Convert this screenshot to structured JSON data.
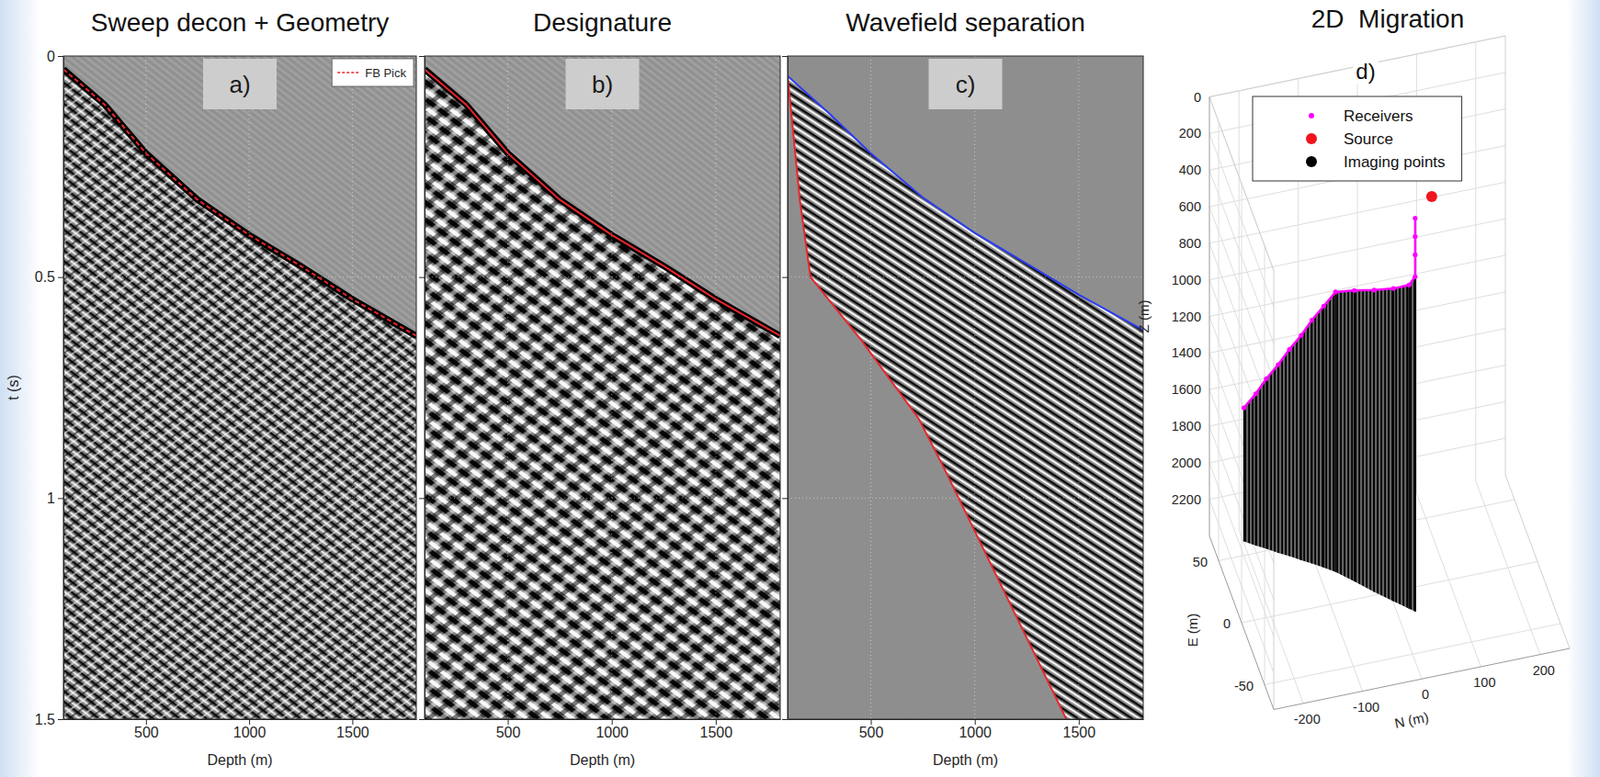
{
  "chart_data": [
    {
      "type": "line",
      "title": "Sweep decon + Geometry",
      "panel_label": "a)",
      "x_label": "Depth (m)",
      "y_label": "t (s)",
      "xlim": [
        100,
        1810
      ],
      "ylim": [
        1.5,
        0
      ],
      "xticks": [
        500,
        1000,
        1500
      ],
      "yticks": [
        0,
        0.5,
        1,
        1.5
      ],
      "grid": true,
      "legend": "upper right",
      "series": [
        {
          "name": "FB Pick",
          "color": "#e8262b",
          "line_style": "dashed",
          "x": [
            100,
            300,
            500,
            750,
            1000,
            1250,
            1500,
            1810
          ],
          "values": [
            0.03,
            0.11,
            0.22,
            0.325,
            0.405,
            0.475,
            0.55,
            0.633
          ]
        }
      ]
    },
    {
      "type": "line",
      "title": "Designature",
      "panel_label": "b)",
      "x_label": "Depth (m)",
      "xlim": [
        100,
        1810
      ],
      "ylim": [
        1.5,
        0
      ],
      "xticks": [
        500,
        1000,
        1500
      ],
      "yticks": [
        0,
        0.5,
        1,
        1.5
      ],
      "grid": true,
      "tick_labels": "x",
      "series": [
        {
          "color": "#e8262b",
          "line_style": "solid",
          "x": [
            100,
            300,
            500,
            750,
            1000,
            1250,
            1500,
            1810
          ],
          "values": [
            0.03,
            0.11,
            0.22,
            0.325,
            0.405,
            0.475,
            0.55,
            0.633
          ]
        }
      ]
    },
    {
      "type": "line",
      "title": "Wavefield separation",
      "panel_label": "c)",
      "x_label": "Depth (m)",
      "xlim": [
        100,
        1810
      ],
      "ylim": [
        1.5,
        0
      ],
      "xticks": [
        500,
        1000,
        1500
      ],
      "yticks": [
        0,
        0.5,
        1,
        1.5
      ],
      "grid": true,
      "tick_labels": "x",
      "series": [
        {
          "color": "#2a3cf0",
          "line_style": "solid",
          "x": [
            100,
            300,
            500,
            750,
            1000,
            1250,
            1500,
            1810
          ],
          "values": [
            0.045,
            0.13,
            0.22,
            0.32,
            0.4,
            0.47,
            0.54,
            0.62
          ]
        },
        {
          "color": "#e8262b",
          "line_style": "solid",
          "x": [
            100,
            160,
            210,
            450,
            730,
            850,
            1440
          ],
          "values": [
            0.045,
            0.33,
            0.5,
            0.64,
            0.82,
            0.93,
            1.5
          ]
        }
      ]
    },
    {
      "type": "scatter3d",
      "title": "2D  Migration",
      "panel_label": "d)",
      "x_label": "N (m)",
      "y_label": "E (m)",
      "z_label": "Z (m)",
      "xlim": [
        -250,
        250
      ],
      "ylim": [
        -70,
        70
      ],
      "zlim": [
        0,
        2400
      ],
      "xticks": [
        -200,
        -100,
        0,
        100,
        200
      ],
      "yticks": [
        -50,
        0,
        50
      ],
      "zticks": [
        0,
        200,
        400,
        600,
        800,
        1000,
        1200,
        1400,
        1600,
        1800,
        2000,
        2200
      ],
      "grid": true,
      "legend": "upper left",
      "series": [
        {
          "name": "Receivers",
          "color": "#ff00ff",
          "marker": "dot",
          "x": [
            13,
            13,
            13,
            13,
            5,
            -15,
            -40,
            -65,
            -89,
            -105,
            -121,
            -136,
            -152,
            -168,
            -184,
            -199,
            -215
          ],
          "y": [
            -39,
            -39,
            -39,
            -39,
            -36,
            -28,
            -18,
            -7,
            3,
            8,
            13,
            17,
            22,
            26,
            31,
            35,
            40
          ],
          "z": [
            100,
            200,
            300,
            420,
            480,
            540,
            600,
            660,
            720,
            820,
            920,
            1020,
            1120,
            1220,
            1320,
            1420,
            1520
          ]
        },
        {
          "name": "Source",
          "color": "#f0141e",
          "marker": "circle",
          "x": [
            41
          ],
          "y": [
            -39
          ],
          "z": [
            0
          ]
        },
        {
          "name": "Imaging points",
          "color": "#000000",
          "marker": "circle",
          "x": [
            13,
            13,
            13,
            13,
            5,
            -15,
            -40,
            -65,
            -89,
            -105,
            -121,
            -136,
            -152,
            -168,
            -184,
            -199,
            -215
          ],
          "y": [
            -39,
            -39,
            -39,
            -39,
            -36,
            -28,
            -18,
            -7,
            3,
            8,
            13,
            17,
            22,
            26,
            31,
            35,
            40
          ],
          "z": [
            100,
            200,
            300,
            420,
            480,
            540,
            600,
            660,
            720,
            820,
            920,
            1020,
            1120,
            1220,
            1320,
            1420,
            1520
          ],
          "z_bottom": 2250
        }
      ]
    }
  ]
}
